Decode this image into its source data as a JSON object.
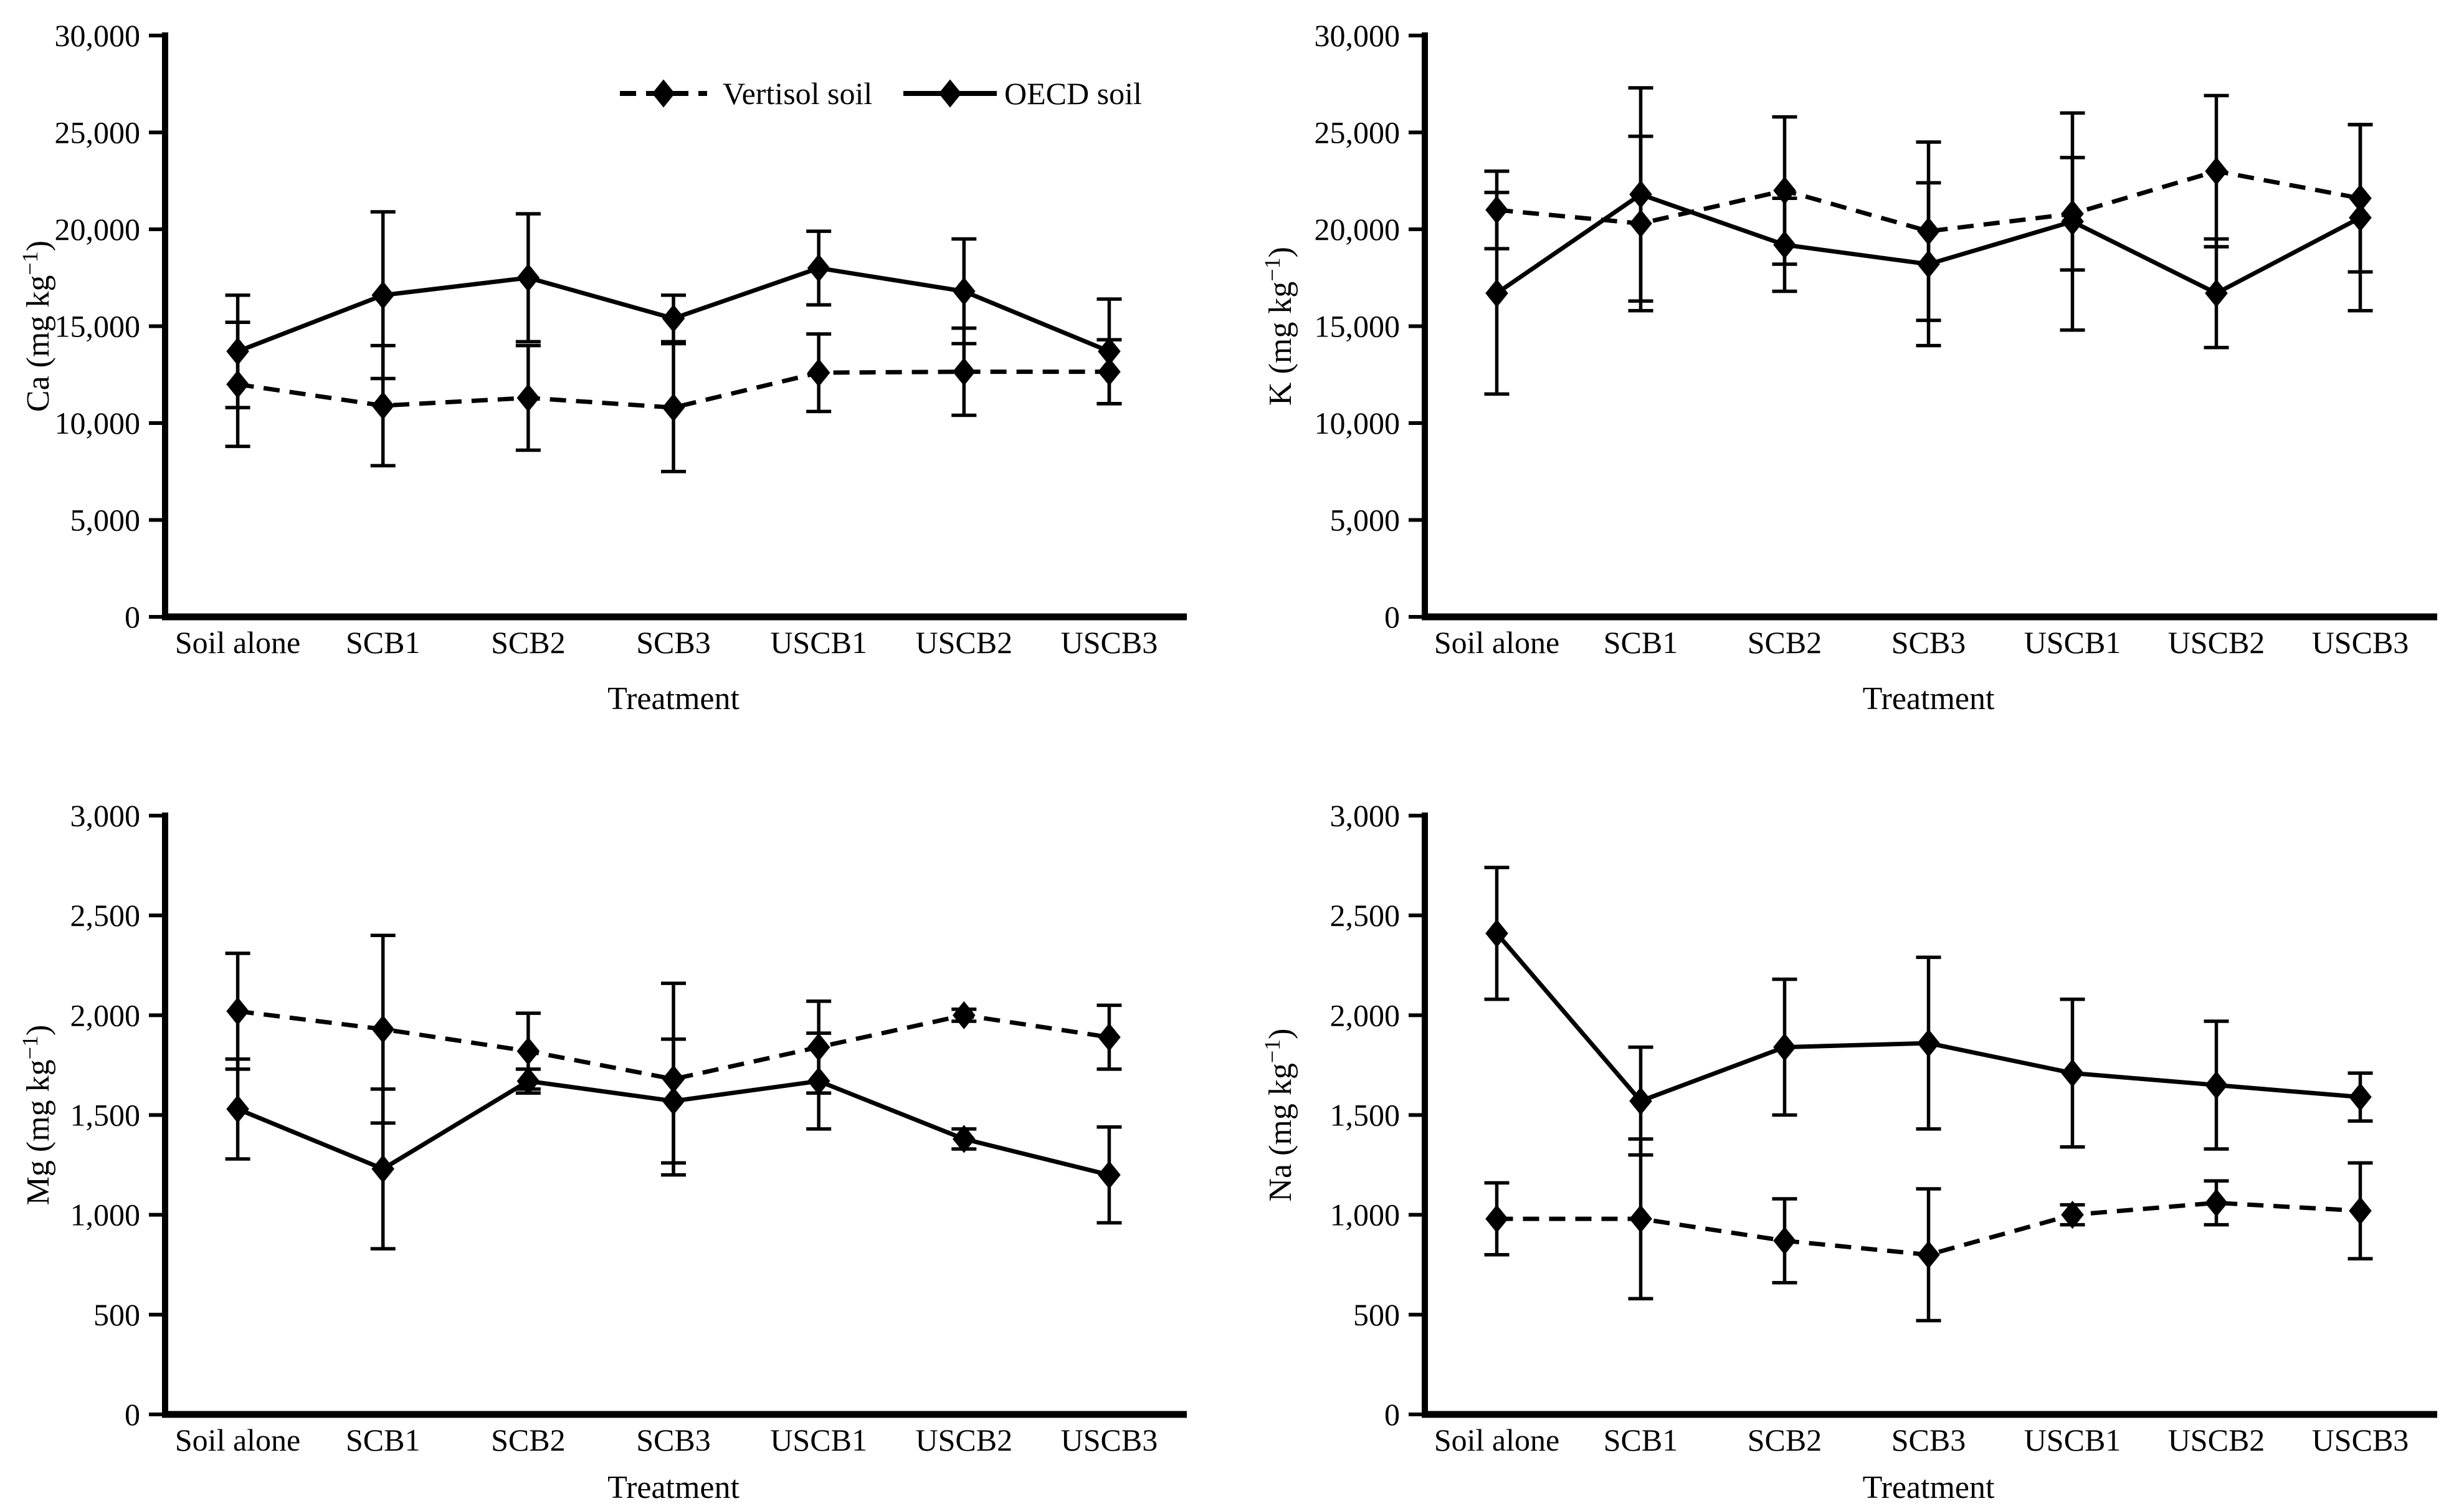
{
  "figure": {
    "background": "#ffffff",
    "ink_color": "#000000",
    "xlabel": "Treatment",
    "categories": [
      "Soil alone",
      "SCB1",
      "SCB2",
      "SCB3",
      "USCB1",
      "USCB2",
      "USCB3"
    ],
    "legend": {
      "position": "top-inside-first-panel",
      "items": [
        {
          "label": "Vertisol soil",
          "line_style": "dashed",
          "marker": "diamond-icon"
        },
        {
          "label": "OECD soil",
          "line_style": "solid",
          "marker": "diamond-icon"
        }
      ]
    }
  },
  "chart_data": [
    {
      "id": "ca",
      "type": "line",
      "title": "",
      "ylabel": "Ca (mg kg⁻¹)",
      "ylabel_parts": {
        "base": "Ca (mg kg",
        "sup": "−1",
        "close": ")"
      },
      "xlabel": "Treatment",
      "categories": [
        "Soil alone",
        "SCB1",
        "SCB2",
        "SCB3",
        "USCB1",
        "USCB2",
        "USCB3"
      ],
      "ylim": [
        0,
        30000
      ],
      "ytick_step": 5000,
      "ytick_labels": [
        "0",
        "5,000",
        "10,000",
        "15,000",
        "20,000",
        "25,000",
        "30,000"
      ],
      "grid": false,
      "legend": true,
      "series": [
        {
          "name": "Vertisol soil",
          "line_style": "dashed",
          "marker": "diamond",
          "values": [
            12000,
            10900,
            11300,
            10800,
            12600,
            12650,
            12650
          ],
          "errors": [
            3200,
            3100,
            2700,
            3300,
            2000,
            2250,
            1650
          ]
        },
        {
          "name": "OECD soil",
          "line_style": "solid",
          "marker": "diamond",
          "values": [
            13700,
            16600,
            17500,
            15400,
            18000,
            16800,
            13700
          ],
          "errors": [
            2900,
            4300,
            3300,
            1200,
            1900,
            2700,
            2700
          ]
        }
      ]
    },
    {
      "id": "k",
      "type": "line",
      "title": "",
      "ylabel": "K (mg kg⁻¹)",
      "ylabel_parts": {
        "base": "K (mg kg",
        "sup": "−1",
        "close": ")"
      },
      "xlabel": "Treatment",
      "categories": [
        "Soil alone",
        "SCB1",
        "SCB2",
        "SCB3",
        "USCB1",
        "USCB2",
        "USCB3"
      ],
      "ylim": [
        0,
        30000
      ],
      "ytick_step": 5000,
      "ytick_labels": [
        "0",
        "5,000",
        "10,000",
        "15,000",
        "20,000",
        "25,000",
        "30,000"
      ],
      "grid": false,
      "legend": false,
      "series": [
        {
          "name": "Vertisol soil",
          "line_style": "dashed",
          "marker": "diamond",
          "values": [
            21000,
            20300,
            22000,
            19900,
            20800,
            23000,
            21600
          ],
          "errors": [
            2000,
            4500,
            3800,
            4600,
            2900,
            3900,
            3800
          ]
        },
        {
          "name": "OECD soil",
          "line_style": "solid",
          "marker": "diamond",
          "values": [
            16700,
            21800,
            19200,
            18200,
            20400,
            16700,
            20600
          ],
          "errors": [
            5200,
            5500,
            2400,
            4200,
            5600,
            2800,
            4800
          ]
        }
      ]
    },
    {
      "id": "mg",
      "type": "line",
      "title": "",
      "ylabel": "Mg (mg kg⁻¹)",
      "ylabel_parts": {
        "base": "Mg (mg kg",
        "sup": "−1",
        "close": ")"
      },
      "xlabel": "Treatment",
      "categories": [
        "Soil alone",
        "SCB1",
        "SCB2",
        "SCB3",
        "USCB1",
        "USCB2",
        "USCB3"
      ],
      "ylim": [
        0,
        3000
      ],
      "ytick_step": 500,
      "ytick_labels": [
        "0",
        "500",
        "1,000",
        "1,500",
        "2,000",
        "2,500",
        "3,000"
      ],
      "grid": false,
      "legend": false,
      "series": [
        {
          "name": "Vertisol soil",
          "line_style": "dashed",
          "marker": "diamond",
          "values": [
            2020,
            1930,
            1820,
            1680,
            1840,
            2000,
            1890
          ],
          "errors": [
            290,
            470,
            190,
            480,
            230,
            30,
            160
          ]
        },
        {
          "name": "OECD soil",
          "line_style": "solid",
          "marker": "diamond",
          "values": [
            1530,
            1230,
            1670,
            1570,
            1670,
            1380,
            1200
          ],
          "errors": [
            250,
            400,
            60,
            310,
            240,
            50,
            240
          ]
        }
      ]
    },
    {
      "id": "na",
      "type": "line",
      "title": "",
      "ylabel": "Na (mg kg⁻¹)",
      "ylabel_parts": {
        "base": "Na (mg kg",
        "sup": "−1",
        "close": ")"
      },
      "xlabel": "Treatment",
      "categories": [
        "Soil alone",
        "SCB1",
        "SCB2",
        "SCB3",
        "USCB1",
        "USCB2",
        "USCB3"
      ],
      "ylim": [
        0,
        3000
      ],
      "ytick_step": 500,
      "ytick_labels": [
        "0",
        "500",
        "1,000",
        "1,500",
        "2,000",
        "2,500",
        "3,000"
      ],
      "grid": false,
      "legend": false,
      "series": [
        {
          "name": "Vertisol soil",
          "line_style": "dashed",
          "marker": "diamond",
          "values": [
            980,
            980,
            870,
            800,
            1000,
            1060,
            1020
          ],
          "errors": [
            180,
            400,
            210,
            330,
            50,
            110,
            240
          ]
        },
        {
          "name": "OECD soil",
          "line_style": "solid",
          "marker": "diamond",
          "values": [
            2410,
            1570,
            1840,
            1860,
            1710,
            1650,
            1590
          ],
          "errors": [
            330,
            270,
            340,
            430,
            370,
            320,
            120
          ]
        }
      ]
    }
  ]
}
